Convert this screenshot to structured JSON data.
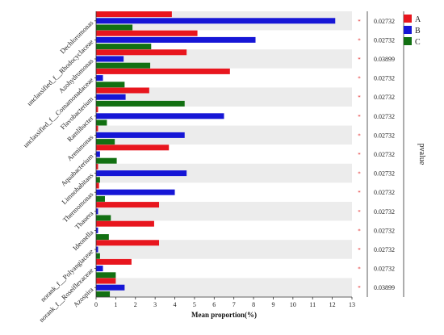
{
  "chart_data": {
    "type": "bar",
    "orientation": "horizontal",
    "categories": [
      "Dechloromonas",
      "unclassified_f__Rhodocyclaceae",
      "Azohydromonas",
      "unclassified_f__Comamonadaceae",
      "Flavobacterium",
      "Ramlibacter",
      "Arenimonas",
      "Aquabacterium",
      "Limnohabitans",
      "Thermomonas",
      "Thauera",
      "Ideonella",
      "norank_f__Polyangiaceae",
      "norank_f__Roseiflexaceae",
      "Azospira"
    ],
    "series": [
      {
        "name": "A",
        "color": "#e8161e",
        "values": [
          3.85,
          5.15,
          4.6,
          6.8,
          2.7,
          0.1,
          0.1,
          3.7,
          0.1,
          0.15,
          3.2,
          2.95,
          3.2,
          1.8,
          1.0
        ]
      },
      {
        "name": "B",
        "color": "#1616d6",
        "values": [
          12.15,
          8.1,
          1.4,
          0.35,
          1.5,
          6.5,
          4.5,
          0.2,
          4.6,
          4.0,
          0.1,
          0.1,
          0.1,
          0.35,
          1.45
        ]
      },
      {
        "name": "C",
        "color": "#127012",
        "values": [
          1.85,
          2.8,
          2.75,
          1.45,
          4.5,
          0.55,
          0.95,
          1.05,
          0.2,
          0.45,
          0.75,
          0.65,
          0.2,
          1.0,
          0.7
        ]
      }
    ],
    "significance": [
      "*",
      "*",
      "*",
      "*",
      "*",
      "*",
      "*",
      "*",
      "*",
      "*",
      "*",
      "*",
      "*",
      "*",
      "*"
    ],
    "pvalues": [
      "0.02732",
      "0.02732",
      "0.03899",
      "0.02732",
      "0.02732",
      "0.02732",
      "0.02732",
      "0.02732",
      "0.02732",
      "0.02732",
      "0.02732",
      "0.02732",
      "0.02732",
      "0.02732",
      "0.03899"
    ],
    "xticks": [
      "0",
      "1",
      "2",
      "3",
      "4",
      "5",
      "6",
      "7",
      "8",
      "9",
      "10",
      "11",
      "12",
      "13"
    ],
    "xlim": [
      0,
      13
    ],
    "xlabel": "Mean proportion(%)",
    "right_axis_label": "pvalue",
    "legend_position": "top-right",
    "row_stripes": [
      "#ececec",
      "#ffffff"
    ]
  }
}
